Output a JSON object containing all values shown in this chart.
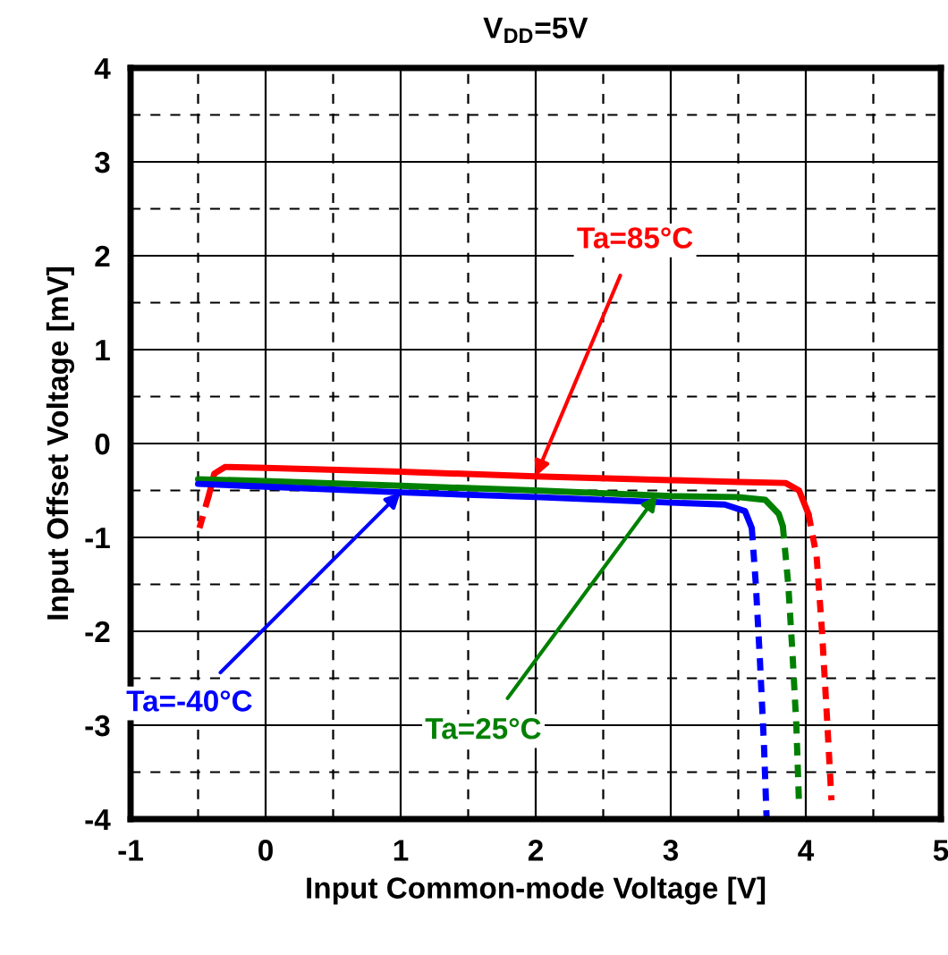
{
  "chart_data": {
    "type": "line",
    "title": "V$_{DD}$=5V",
    "xlabel": "Input Common-mode Voltage [V]",
    "ylabel": "Input Offset Voltage [mV]",
    "xlim": [
      -1,
      5
    ],
    "ylim": [
      -4,
      4
    ],
    "xticks": [
      -1,
      0,
      1,
      2,
      3,
      4,
      5
    ],
    "yticks": [
      -4,
      -3,
      -2,
      -1,
      0,
      1,
      2,
      3,
      4
    ],
    "grid": true,
    "marker": "none",
    "series": [
      {
        "color": "#ff0000",
        "line_style": "solid",
        "x": [
          -0.42,
          -0.38,
          -0.3,
          0,
          1,
          2,
          3,
          3.5,
          3.85,
          3.95,
          4.02
        ],
        "values": [
          -0.55,
          -0.32,
          -0.25,
          -0.26,
          -0.3,
          -0.35,
          -0.39,
          -0.41,
          -0.42,
          -0.5,
          -0.75
        ]
      },
      {
        "color": "#ff0000",
        "line_style": "dashed",
        "x": [
          -0.49,
          -0.42
        ],
        "values": [
          -0.9,
          -0.55
        ]
      },
      {
        "color": "#ff0000",
        "line_style": "dashed",
        "x": [
          4.02,
          4.08,
          4.12,
          4.16,
          4.19
        ],
        "values": [
          -0.75,
          -1.2,
          -2,
          -3,
          -3.8
        ]
      },
      {
        "color": "#008000",
        "line_style": "solid",
        "x": [
          -0.5,
          0,
          1,
          2,
          3,
          3.5,
          3.7,
          3.8,
          3.83
        ],
        "values": [
          -0.38,
          -0.4,
          -0.45,
          -0.5,
          -0.56,
          -0.57,
          -0.6,
          -0.75,
          -0.88
        ]
      },
      {
        "color": "#008000",
        "line_style": "dashed",
        "x": [
          3.83,
          3.87,
          3.9,
          3.93,
          3.95
        ],
        "values": [
          -0.88,
          -1.5,
          -2.2,
          -3,
          -3.85
        ]
      },
      {
        "color": "#0000ff",
        "line_style": "solid",
        "x": [
          -0.5,
          0,
          1,
          2,
          3,
          3.4,
          3.55,
          3.6
        ],
        "values": [
          -0.43,
          -0.46,
          -0.52,
          -0.57,
          -0.63,
          -0.65,
          -0.72,
          -0.9
        ]
      },
      {
        "color": "#0000ff",
        "line_style": "dashed",
        "x": [
          3.6,
          3.63,
          3.66,
          3.69,
          3.71
        ],
        "values": [
          -0.9,
          -1.5,
          -2.3,
          -3.2,
          -4
        ]
      }
    ],
    "annotations": [
      {
        "text": "Ta=85°C",
        "x": 2,
        "y": -0.35
      },
      {
        "text": "Ta=-40°C",
        "x": 1,
        "y": -0.52
      },
      {
        "text": "Ta=25°C",
        "x": 2.9,
        "y": -0.55
      }
    ]
  }
}
